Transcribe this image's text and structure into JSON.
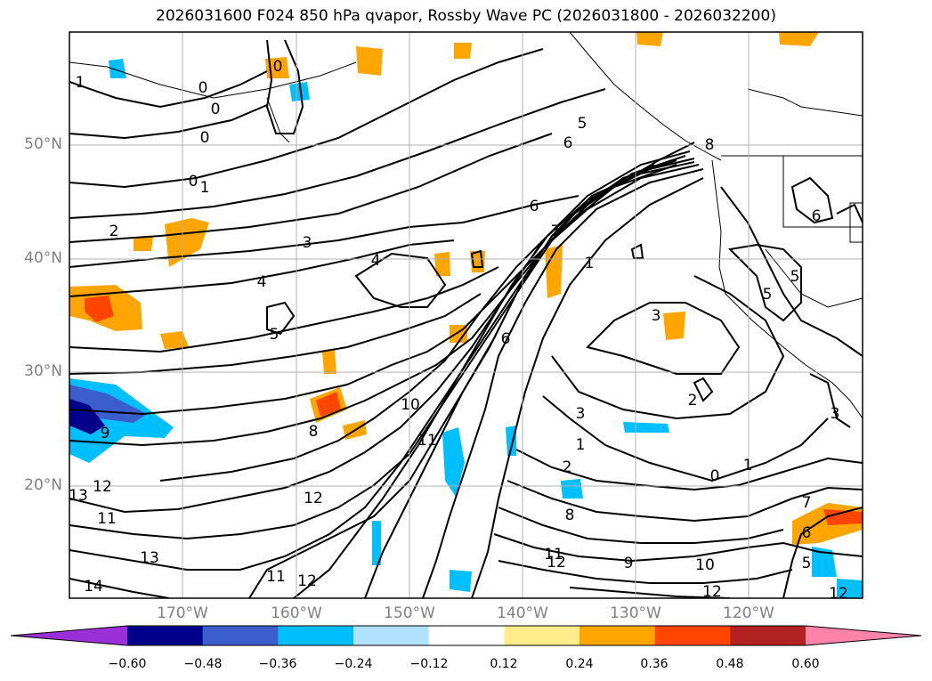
{
  "title": "2026031600 F024 850 hPa qvapor, Rossby Wave PC (2026031800 - 2026032200)",
  "lat_ticks": [
    "50°N",
    "40°N",
    "30°N",
    "20°N"
  ],
  "lon_ticks": [
    "170°W",
    "160°W",
    "150°W",
    "140°W",
    "130°W",
    "120°W"
  ],
  "colorbar": {
    "colors": [
      "#9b30d9",
      "#00008b",
      "#3a5fcd",
      "#00bfff",
      "#b0e2ff",
      "#ffffff",
      "#ffec8b",
      "#ffa500",
      "#ff4500",
      "#b22222",
      "#ff82ab"
    ],
    "ticks": [
      "−0.60",
      "−0.48",
      "−0.36",
      "−0.24",
      "−0.12",
      "0.12",
      "0.24",
      "0.36",
      "0.48",
      "0.60"
    ]
  },
  "contour_labels": [
    "1",
    "0",
    "0",
    "0",
    "0",
    "1",
    "2",
    "3",
    "4",
    "4",
    "5",
    "6",
    "6",
    "5",
    "7",
    "1",
    "6",
    "8",
    "10",
    "11",
    "12",
    "12",
    "13",
    "14",
    "11",
    "12",
    "9",
    "11",
    "12",
    "13",
    "3",
    "2",
    "3",
    "1",
    "2",
    "0",
    "1",
    "8",
    "9",
    "10",
    "11",
    "12",
    "12",
    "7",
    "6",
    "5",
    "3",
    "5",
    "5",
    "6",
    "0",
    "8"
  ],
  "map_colors": {
    "land_line": "#000000",
    "grid": "#b0b0b0"
  }
}
